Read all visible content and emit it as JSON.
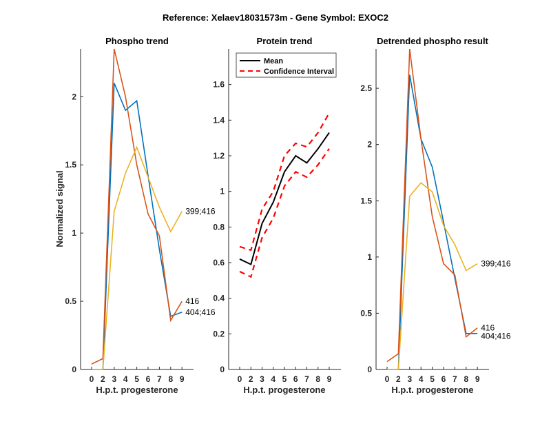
{
  "figure": {
    "suptitle": "Reference:  Xelaev18031573m - Gene Symbol:  EXOC2"
  },
  "colors": {
    "blue": "#0072BD",
    "orange": "#D95319",
    "yellow": "#EDB120",
    "black": "#000000",
    "red": "#FF0000",
    "axis": "#262626"
  },
  "chart_data": [
    {
      "type": "line",
      "title": "Phospho trend",
      "xlabel": "H.p.t. progesterone",
      "ylabel": "Normalized signal",
      "categories": [
        "0",
        "2",
        "3",
        "4",
        "5",
        "6",
        "7",
        "8",
        "9"
      ],
      "ylim": [
        0,
        2.35
      ],
      "yticks": [
        "0",
        "0.5",
        "1",
        "1.5",
        "2"
      ],
      "ytick_values": [
        0,
        0.5,
        1,
        1.5,
        2
      ],
      "grid": false,
      "series": [
        {
          "name": "404;416",
          "color_key": "blue",
          "values": [
            0,
            0,
            2.1,
            1.9,
            1.97,
            1.42,
            0.88,
            0.39,
            0.42
          ]
        },
        {
          "name": "416",
          "color_key": "orange",
          "values": [
            0.04,
            0.08,
            2.35,
            2.0,
            1.5,
            1.14,
            0.98,
            0.36,
            0.5
          ]
        },
        {
          "name": "399;416",
          "color_key": "yellow",
          "values": [
            0,
            0,
            1.16,
            1.44,
            1.63,
            1.41,
            1.19,
            1.01,
            1.16
          ]
        }
      ],
      "end_labels": [
        {
          "text": "399;416",
          "series": 2
        },
        {
          "text": "416",
          "series": 1
        },
        {
          "text": "404;416",
          "series": 0
        }
      ]
    },
    {
      "type": "line",
      "title": "Protein trend",
      "xlabel": "H.p.t. progesterone",
      "ylabel": "",
      "categories": [
        "0",
        "2",
        "3",
        "4",
        "5",
        "6",
        "7",
        "8",
        "9"
      ],
      "ylim": [
        0,
        1.8
      ],
      "yticks": [
        "0",
        "0.2",
        "0.4",
        "0.6",
        "0.8",
        "1",
        "1.2",
        "1.4",
        "1.6"
      ],
      "ytick_values": [
        0,
        0.2,
        0.4,
        0.6,
        0.8,
        1,
        1.2,
        1.4,
        1.6
      ],
      "grid": false,
      "legend": {
        "placement": "top-left",
        "entries": [
          "Mean",
          "Confidence Interval"
        ]
      },
      "series": [
        {
          "name": "Mean",
          "color_key": "black",
          "style": "solid",
          "values": [
            0.62,
            0.59,
            0.82,
            0.94,
            1.11,
            1.2,
            1.16,
            1.24,
            1.33
          ]
        },
        {
          "name": "Confidence Interval (upper)",
          "color_key": "red",
          "style": "dashed",
          "values": [
            0.69,
            0.67,
            0.9,
            1.0,
            1.2,
            1.27,
            1.25,
            1.33,
            1.44
          ]
        },
        {
          "name": "Confidence Interval (lower)",
          "color_key": "red",
          "style": "dashed",
          "values": [
            0.55,
            0.52,
            0.74,
            0.85,
            1.03,
            1.11,
            1.08,
            1.15,
            1.24
          ]
        }
      ]
    },
    {
      "type": "line",
      "title": "Detrended phospho result",
      "xlabel": "H.p.t. progesterone",
      "ylabel": "",
      "categories": [
        "0",
        "2",
        "3",
        "4",
        "5",
        "6",
        "7",
        "8",
        "9"
      ],
      "ylim": [
        0,
        2.85
      ],
      "yticks": [
        "0",
        "0.5",
        "1",
        "1.5",
        "2",
        "2.5"
      ],
      "ytick_values": [
        0,
        0.5,
        1,
        1.5,
        2,
        2.5
      ],
      "grid": false,
      "series": [
        {
          "name": "404;416",
          "color_key": "blue",
          "values": [
            0,
            0,
            2.62,
            2.05,
            1.8,
            1.31,
            0.81,
            0.32,
            0.32
          ]
        },
        {
          "name": "416",
          "color_key": "orange",
          "values": [
            0.07,
            0.14,
            2.85,
            2.05,
            1.36,
            0.94,
            0.84,
            0.29,
            0.37
          ]
        },
        {
          "name": "399;416",
          "color_key": "yellow",
          "values": [
            0,
            0,
            1.54,
            1.66,
            1.58,
            1.28,
            1.11,
            0.88,
            0.94
          ]
        }
      ],
      "end_labels": [
        {
          "text": "399;416",
          "series": 2
        },
        {
          "text": "416",
          "series": 1
        },
        {
          "text": "404;416",
          "series": 0
        }
      ]
    }
  ]
}
